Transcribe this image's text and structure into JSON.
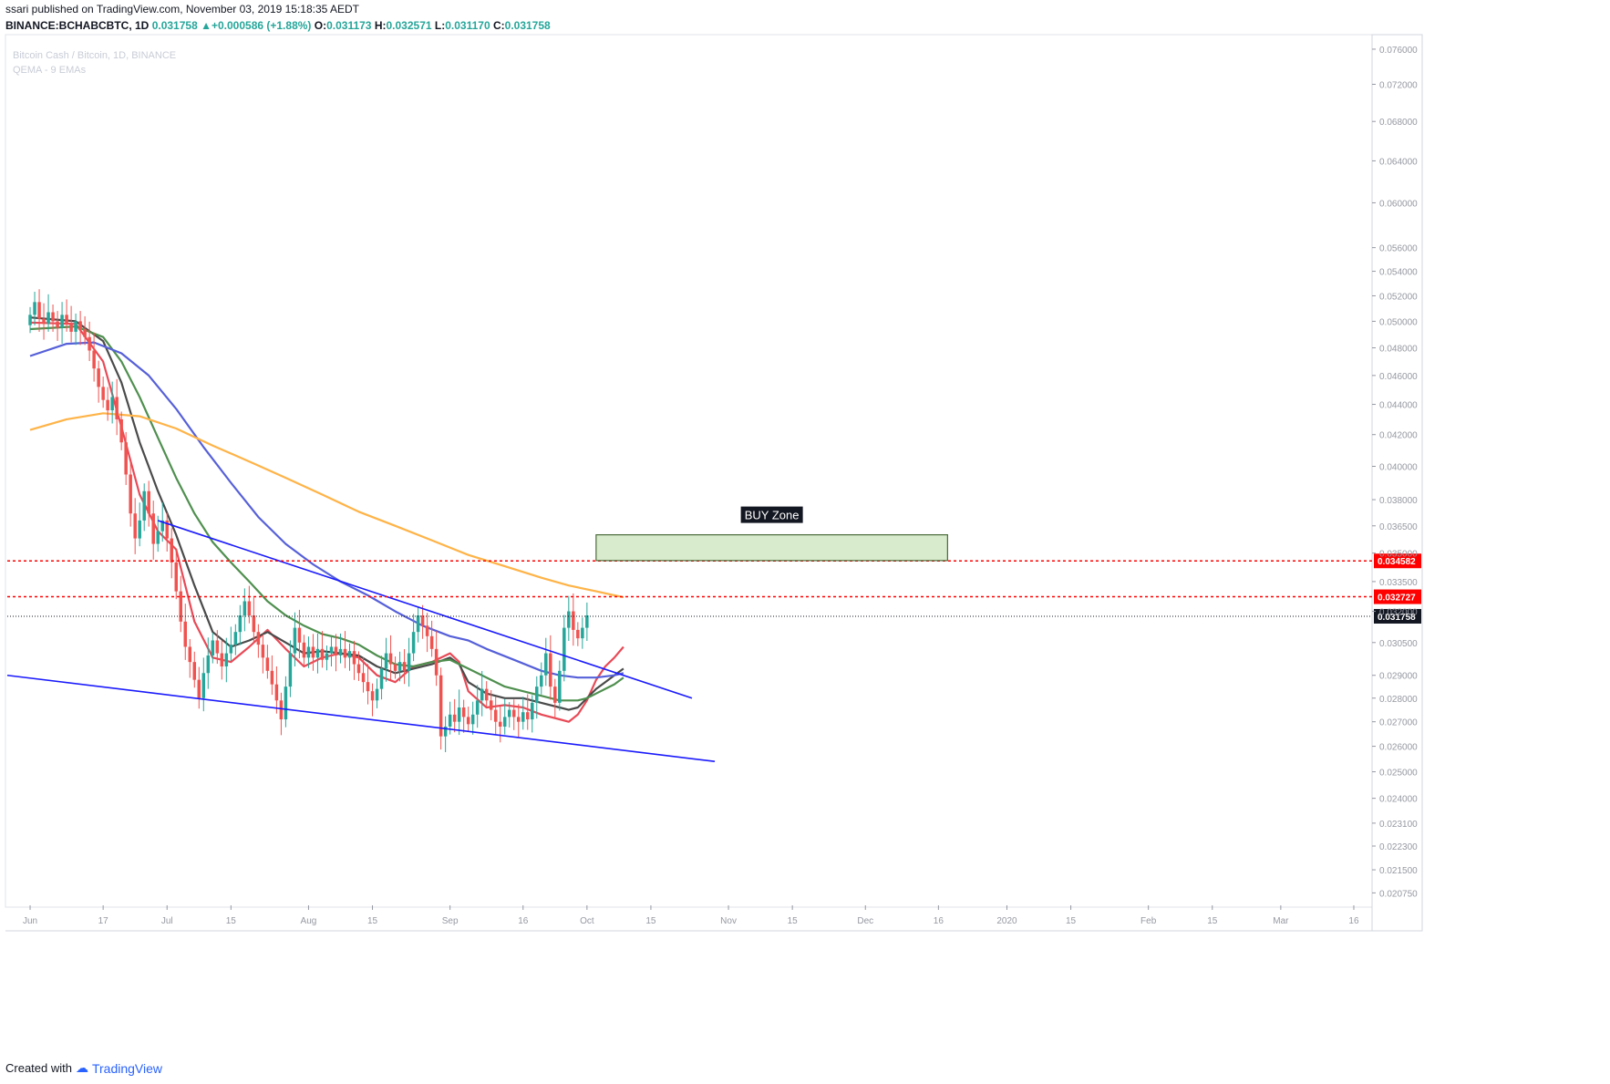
{
  "header": {
    "publish_line": "ssari published on TradingView.com, November 03, 2019 15:18:35 AEDT",
    "symbol": "BINANCE:BCHABCBTC, 1D",
    "last": "0.031758",
    "change_arrow": "▲",
    "change": "+0.000586 (+1.88%)",
    "o_label": "O:",
    "o": "0.031173",
    "h_label": "H:",
    "h": "0.032571",
    "l_label": "L:",
    "l": "0.031170",
    "c_label": "C:",
    "c": "0.031758"
  },
  "watermark": {
    "pair": "Bitcoin Cash / Bitcoin, 1D, BINANCE",
    "indicator": "QEMA - 9 EMAs"
  },
  "footer": {
    "created_with": "Created with",
    "brand": "TradingView"
  },
  "colors": {
    "up": "#26a69a",
    "down": "#ef5350",
    "ema_fast": "#e84a57",
    "ema_mid": "#4a4a4a",
    "ema_green": "#4f8f4f",
    "ema_blue": "#5660d8",
    "ema_orange": "#ffb347",
    "trendline": "#1a1aff",
    "buy_zone_fill": "#d8ebcc",
    "resistance": "#ff0000"
  },
  "chart_data": {
    "type": "candlestick",
    "title": "Bitcoin Cash / Bitcoin, 1D, BINANCE",
    "y_scale": "log",
    "ylim": [
      0.0203,
      0.0775
    ],
    "y_ticks": [
      "0.076000",
      "0.072000",
      "0.068000",
      "0.064000",
      "0.060000",
      "0.056000",
      "0.054000",
      "0.052000",
      "0.050000",
      "0.048000",
      "0.046000",
      "0.044000",
      "0.042000",
      "0.040000",
      "0.038000",
      "0.036500",
      "0.035000",
      "0.033500",
      "0.032000",
      "0.030500",
      "0.029000",
      "0.028000",
      "0.027000",
      "0.026000",
      "0.025000",
      "0.024000",
      "0.023100",
      "0.022300",
      "0.021500",
      "0.020750"
    ],
    "x_ticks": [
      "Jun",
      "17",
      "Jul",
      "15",
      "Aug",
      "15",
      "Sep",
      "16",
      "Oct",
      "15",
      "Nov",
      "15",
      "Dec",
      "16",
      "2020",
      "15",
      "Feb",
      "15",
      "Mar",
      "16"
    ],
    "x_tick_days": [
      0,
      16,
      30,
      44,
      61,
      75,
      92,
      108,
      122,
      136,
      153,
      167,
      183,
      199,
      214,
      228,
      245,
      259,
      274,
      290
    ],
    "x_range_days": [
      -5,
      294
    ],
    "candle_ohlc_start_day": 0,
    "candles": [],
    "candle_seed": [
      [
        0.0497,
        0.0505
      ],
      [
        0.0505,
        0.0515
      ],
      [
        0.0515,
        0.0502
      ],
      [
        0.0502,
        0.0498
      ],
      [
        0.0498,
        0.0507
      ],
      [
        0.0507,
        0.05
      ],
      [
        0.05,
        0.0495
      ],
      [
        0.0495,
        0.0505
      ],
      [
        0.0505,
        0.0498
      ],
      [
        0.0498,
        0.0492
      ],
      [
        0.0492,
        0.05
      ],
      [
        0.05,
        0.0494
      ],
      [
        0.0494,
        0.0488
      ],
      [
        0.0488,
        0.0478
      ],
      [
        0.0478,
        0.0465
      ],
      [
        0.0465,
        0.0452
      ],
      [
        0.0452,
        0.0443
      ],
      [
        0.0443,
        0.0436
      ],
      [
        0.0436,
        0.0445
      ],
      [
        0.0445,
        0.043
      ],
      [
        0.043,
        0.0415
      ],
      [
        0.0415,
        0.0395
      ],
      [
        0.0395,
        0.0372
      ],
      [
        0.0372,
        0.0358
      ],
      [
        0.0358,
        0.0368
      ],
      [
        0.0368,
        0.0385
      ],
      [
        0.0385,
        0.0372
      ],
      [
        0.0372,
        0.0355
      ],
      [
        0.0355,
        0.0362
      ],
      [
        0.0362,
        0.0368
      ],
      [
        0.0368,
        0.0358
      ],
      [
        0.0358,
        0.0345
      ],
      [
        0.0345,
        0.033
      ],
      [
        0.033,
        0.0315
      ],
      [
        0.0315,
        0.0303
      ],
      [
        0.0303,
        0.0296
      ],
      [
        0.0296,
        0.0288
      ],
      [
        0.0288,
        0.028
      ],
      [
        0.028,
        0.0291
      ],
      [
        0.0291,
        0.0299
      ],
      [
        0.0299,
        0.0306
      ],
      [
        0.0306,
        0.03
      ],
      [
        0.03,
        0.0294
      ],
      [
        0.0294,
        0.03
      ],
      [
        0.03,
        0.0304
      ],
      [
        0.0304,
        0.031
      ],
      [
        0.031,
        0.0318
      ],
      [
        0.0318,
        0.0325
      ],
      [
        0.0325,
        0.0318
      ],
      [
        0.0318,
        0.031
      ],
      [
        0.031,
        0.0304
      ],
      [
        0.0304,
        0.0298
      ],
      [
        0.0298,
        0.0292
      ],
      [
        0.0292,
        0.0286
      ],
      [
        0.0286,
        0.0279
      ],
      [
        0.0279,
        0.0271
      ],
      [
        0.0271,
        0.0285
      ],
      [
        0.0285,
        0.03
      ],
      [
        0.03,
        0.0312
      ],
      [
        0.0312,
        0.0305
      ],
      [
        0.0305,
        0.0298
      ],
      [
        0.0298,
        0.0303
      ],
      [
        0.0303,
        0.0298
      ],
      [
        0.0298,
        0.0302
      ],
      [
        0.0302,
        0.0297
      ],
      [
        0.0297,
        0.03
      ],
      [
        0.03,
        0.0303
      ],
      [
        0.0303,
        0.0299
      ],
      [
        0.0299,
        0.0302
      ],
      [
        0.0302,
        0.0298
      ],
      [
        0.0298,
        0.0301
      ],
      [
        0.0301,
        0.0295
      ],
      [
        0.0295,
        0.0291
      ],
      [
        0.0291,
        0.0287
      ],
      [
        0.0287,
        0.0283
      ],
      [
        0.0283,
        0.0279
      ],
      [
        0.0279,
        0.0284
      ],
      [
        0.0284,
        0.0293
      ],
      [
        0.0293,
        0.03
      ],
      [
        0.03,
        0.0295
      ],
      [
        0.0295,
        0.0292
      ],
      [
        0.0292,
        0.0296
      ],
      [
        0.0296,
        0.0292
      ],
      [
        0.0292,
        0.03
      ],
      [
        0.03,
        0.031
      ],
      [
        0.031,
        0.0318
      ],
      [
        0.0318,
        0.0313
      ],
      [
        0.0313,
        0.0308
      ],
      [
        0.0308,
        0.0302
      ],
      [
        0.0302,
        0.029
      ],
      [
        0.029,
        0.0264
      ],
      [
        0.0264,
        0.0268
      ],
      [
        0.0268,
        0.0273
      ],
      [
        0.0273,
        0.027
      ],
      [
        0.027,
        0.0276
      ],
      [
        0.0276,
        0.0272
      ],
      [
        0.0272,
        0.0269
      ],
      [
        0.0269,
        0.0273
      ],
      [
        0.0273,
        0.0279
      ],
      [
        0.0279,
        0.0284
      ],
      [
        0.0284,
        0.0279
      ],
      [
        0.0279,
        0.0275
      ],
      [
        0.0275,
        0.027
      ],
      [
        0.027,
        0.0268
      ],
      [
        0.0268,
        0.0272
      ],
      [
        0.0272,
        0.0275
      ],
      [
        0.0275,
        0.0272
      ],
      [
        0.0272,
        0.027
      ],
      [
        0.027,
        0.0274
      ],
      [
        0.0274,
        0.0271
      ],
      [
        0.0271,
        0.0278
      ],
      [
        0.0278,
        0.0285
      ],
      [
        0.0285,
        0.029
      ],
      [
        0.029,
        0.03
      ],
      [
        0.03,
        0.0285
      ],
      [
        0.0285,
        0.0278
      ],
      [
        0.0278,
        0.0292
      ],
      [
        0.0292,
        0.0312
      ],
      [
        0.0312,
        0.032
      ],
      [
        0.032,
        0.0311
      ],
      [
        0.0311,
        0.0307
      ],
      [
        0.0307,
        0.0312
      ],
      [
        0.0312,
        0.0318
      ]
    ],
    "emas": [
      {
        "color_key": "ema_fast",
        "points": [
          [
            0,
            0.0499
          ],
          [
            10,
            0.0498
          ],
          [
            16,
            0.047
          ],
          [
            20,
            0.0425
          ],
          [
            24,
            0.0383
          ],
          [
            28,
            0.0362
          ],
          [
            32,
            0.0352
          ],
          [
            36,
            0.0315
          ],
          [
            40,
            0.0298
          ],
          [
            44,
            0.0296
          ],
          [
            48,
            0.0303
          ],
          [
            52,
            0.0311
          ],
          [
            56,
            0.0302
          ],
          [
            60,
            0.0294
          ],
          [
            64,
            0.0298
          ],
          [
            68,
            0.03
          ],
          [
            72,
            0.0298
          ],
          [
            76,
            0.029
          ],
          [
            80,
            0.0287
          ],
          [
            84,
            0.0294
          ],
          [
            88,
            0.0296
          ],
          [
            92,
            0.03
          ],
          [
            94,
            0.0296
          ],
          [
            96,
            0.0283
          ],
          [
            100,
            0.0276
          ],
          [
            104,
            0.0277
          ],
          [
            108,
            0.0276
          ],
          [
            112,
            0.0273
          ],
          [
            116,
            0.0271
          ],
          [
            118,
            0.027
          ],
          [
            120,
            0.0273
          ],
          [
            122,
            0.0279
          ],
          [
            124,
            0.0288
          ],
          [
            126,
            0.0294
          ],
          [
            128,
            0.0298
          ],
          [
            130,
            0.0303
          ]
        ]
      },
      {
        "color_key": "ema_mid",
        "points": [
          [
            0,
            0.0503
          ],
          [
            10,
            0.05
          ],
          [
            16,
            0.0485
          ],
          [
            20,
            0.0455
          ],
          [
            24,
            0.0415
          ],
          [
            28,
            0.0385
          ],
          [
            32,
            0.036
          ],
          [
            36,
            0.0333
          ],
          [
            40,
            0.031
          ],
          [
            44,
            0.0303
          ],
          [
            48,
            0.0306
          ],
          [
            52,
            0.031
          ],
          [
            56,
            0.0305
          ],
          [
            60,
            0.03
          ],
          [
            64,
            0.0301
          ],
          [
            68,
            0.03
          ],
          [
            72,
            0.0299
          ],
          [
            76,
            0.0294
          ],
          [
            80,
            0.0291
          ],
          [
            84,
            0.0293
          ],
          [
            88,
            0.0295
          ],
          [
            92,
            0.0298
          ],
          [
            94,
            0.0295
          ],
          [
            96,
            0.0287
          ],
          [
            100,
            0.0282
          ],
          [
            104,
            0.028
          ],
          [
            108,
            0.028
          ],
          [
            112,
            0.0278
          ],
          [
            116,
            0.0276
          ],
          [
            118,
            0.0275
          ],
          [
            120,
            0.0276
          ],
          [
            122,
            0.028
          ],
          [
            124,
            0.0284
          ],
          [
            126,
            0.0287
          ],
          [
            128,
            0.029
          ],
          [
            130,
            0.0293
          ]
        ]
      },
      {
        "color_key": "ema_green",
        "points": [
          [
            0,
            0.0494
          ],
          [
            10,
            0.0496
          ],
          [
            16,
            0.0488
          ],
          [
            20,
            0.047
          ],
          [
            24,
            0.0445
          ],
          [
            28,
            0.0418
          ],
          [
            32,
            0.0393
          ],
          [
            36,
            0.0372
          ],
          [
            40,
            0.0356
          ],
          [
            44,
            0.0345
          ],
          [
            48,
            0.0335
          ],
          [
            52,
            0.0325
          ],
          [
            56,
            0.0318
          ],
          [
            60,
            0.0313
          ],
          [
            64,
            0.0309
          ],
          [
            68,
            0.0307
          ],
          [
            72,
            0.0304
          ],
          [
            76,
            0.0299
          ],
          [
            80,
            0.0295
          ],
          [
            84,
            0.0294
          ],
          [
            88,
            0.0296
          ],
          [
            92,
            0.0297
          ],
          [
            96,
            0.0293
          ],
          [
            100,
            0.0289
          ],
          [
            104,
            0.0285
          ],
          [
            108,
            0.0283
          ],
          [
            112,
            0.0281
          ],
          [
            116,
            0.0279
          ],
          [
            118,
            0.0279
          ],
          [
            120,
            0.0279
          ],
          [
            122,
            0.028
          ],
          [
            124,
            0.0282
          ],
          [
            126,
            0.0284
          ],
          [
            128,
            0.0286
          ],
          [
            130,
            0.0289
          ]
        ]
      },
      {
        "color_key": "ema_blue",
        "points": [
          [
            0,
            0.0474
          ],
          [
            8,
            0.0483
          ],
          [
            14,
            0.0484
          ],
          [
            20,
            0.0476
          ],
          [
            26,
            0.046
          ],
          [
            32,
            0.0437
          ],
          [
            38,
            0.0412
          ],
          [
            44,
            0.039
          ],
          [
            50,
            0.037
          ],
          [
            56,
            0.0355
          ],
          [
            62,
            0.0344
          ],
          [
            68,
            0.0335
          ],
          [
            74,
            0.0328
          ],
          [
            80,
            0.032
          ],
          [
            86,
            0.0313
          ],
          [
            92,
            0.0308
          ],
          [
            96,
            0.0306
          ],
          [
            100,
            0.0302
          ],
          [
            106,
            0.0297
          ],
          [
            112,
            0.0292
          ],
          [
            116,
            0.029
          ],
          [
            120,
            0.0289
          ],
          [
            124,
            0.0289
          ],
          [
            128,
            0.029
          ],
          [
            130,
            0.0291
          ]
        ]
      },
      {
        "color_key": "ema_orange",
        "points": [
          [
            0,
            0.0423
          ],
          [
            8,
            0.043
          ],
          [
            16,
            0.0434
          ],
          [
            24,
            0.0432
          ],
          [
            32,
            0.0424
          ],
          [
            40,
            0.0413
          ],
          [
            48,
            0.0403
          ],
          [
            56,
            0.0393
          ],
          [
            64,
            0.0383
          ],
          [
            72,
            0.0373
          ],
          [
            80,
            0.0365
          ],
          [
            88,
            0.0357
          ],
          [
            96,
            0.0349
          ],
          [
            104,
            0.0343
          ],
          [
            112,
            0.0337
          ],
          [
            118,
            0.0333
          ],
          [
            124,
            0.033
          ],
          [
            128,
            0.0328
          ],
          [
            130,
            0.0327
          ]
        ]
      }
    ],
    "trendlines": [
      {
        "from": [
          28,
          0.0368
        ],
        "to": [
          145,
          0.028
        ]
      },
      {
        "from": [
          -5,
          0.029
        ],
        "to": [
          150,
          0.0254
        ]
      }
    ],
    "resistance_levels": [
      "0.034582",
      "0.032727"
    ],
    "last_price": "0.031758",
    "buy_zone": {
      "label": "BUY Zone",
      "day_from": 124,
      "day_to": 201,
      "price_low": 0.0346,
      "price_high": 0.036
    }
  }
}
